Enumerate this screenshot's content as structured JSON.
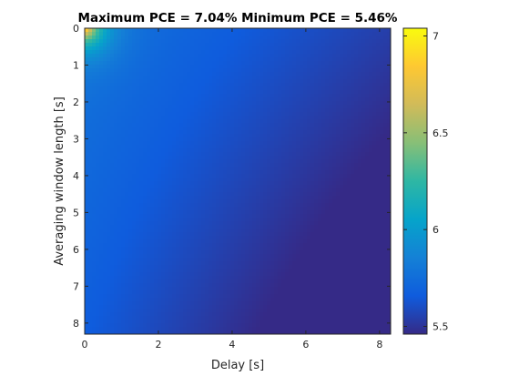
{
  "chart_data": {
    "type": "heatmap",
    "title": "Maximum PCE = 7.04% Minimum PCE = 5.46%",
    "xlabel": "Delay [s]",
    "ylabel": "Averaging window length [s]",
    "xlim": [
      0,
      8.3
    ],
    "ylim": [
      0,
      8.3
    ],
    "y_reversed": true,
    "x_ticks": [
      "0",
      "2",
      "4",
      "6",
      "8"
    ],
    "y_ticks": [
      "0",
      "1",
      "2",
      "3",
      "4",
      "5",
      "6",
      "7",
      "8"
    ],
    "colorbar": {
      "colormap": "parula",
      "clim": [
        5.46,
        7.04
      ],
      "ticks": [
        "5.5",
        "6",
        "6.5",
        "7"
      ]
    },
    "grid": false,
    "max_value": 7.04,
    "min_value": 5.46,
    "max_location": {
      "x": 0,
      "y": 0
    },
    "min_location": {
      "x": 8.3,
      "y": 8.3
    }
  }
}
